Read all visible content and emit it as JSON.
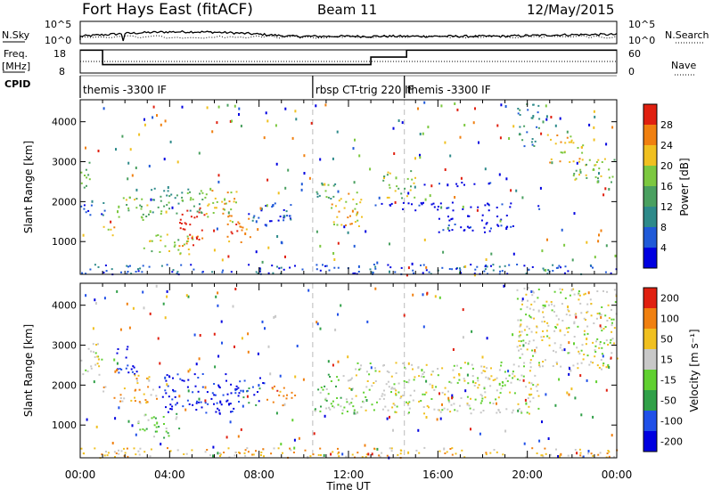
{
  "header": {
    "station": "Fort Hays East (fitACF)",
    "beam": "Beam 11",
    "date": "12/May/2015"
  },
  "top_panels": {
    "nsky_label": "N.Sky",
    "nsky_ticks": [
      "10^5",
      "10^0"
    ],
    "nsearch_label": "N.Search",
    "freq_label_1": "Freq.",
    "freq_label_2": "[MHz]",
    "freq_ticks": [
      "18",
      "8"
    ],
    "nave_ticks": [
      "60",
      "0"
    ],
    "nave_label": "Nave",
    "cpid_label": "CPID",
    "cpid_segments": [
      {
        "label": "themis -3300 IF",
        "start_h": 0.0
      },
      {
        "label": "rbsp CT-trig 220 IF",
        "start_h": 10.4
      },
      {
        "label": "themis -3300 IF",
        "start_h": 14.5
      }
    ]
  },
  "chart_data": [
    {
      "type": "heatmap",
      "title": "Power",
      "ylabel": "Slant Range [km]",
      "xlabel": "Time UT",
      "xlim": [
        0,
        24
      ],
      "ylim": [
        180,
        4550
      ],
      "x_ticks": [
        "00:00",
        "04:00",
        "08:00",
        "12:00",
        "16:00",
        "20:00",
        "00:00"
      ],
      "y_ticks": [
        1000,
        2000,
        3000,
        4000
      ],
      "colorbar": {
        "label": "Power [dB]",
        "ticks": [
          4,
          8,
          12,
          16,
          20,
          24,
          28
        ],
        "range": [
          0,
          32
        ],
        "colors": [
          "#0000e0",
          "#205ad8",
          "#2e8a8a",
          "#4aa060",
          "#7cc840",
          "#f0c020",
          "#f08010",
          "#e02010"
        ]
      },
      "regions": [
        {
          "t0": 0.0,
          "t1": 0.5,
          "r0": 2300,
          "r1": 3100,
          "level": 3
        },
        {
          "t0": 0.0,
          "t1": 1.1,
          "r0": 1600,
          "r1": 2000,
          "level": 1
        },
        {
          "t0": 1.0,
          "t1": 1.7,
          "r0": 1100,
          "r1": 1400,
          "level": 5
        },
        {
          "t0": 1.6,
          "t1": 3.0,
          "r0": 1550,
          "r1": 2200,
          "level": 4
        },
        {
          "t0": 2.8,
          "t1": 5.0,
          "r0": 700,
          "r1": 1200,
          "level": 4
        },
        {
          "t0": 3.0,
          "t1": 5.6,
          "r0": 1700,
          "r1": 2400,
          "level": 3
        },
        {
          "t0": 4.4,
          "t1": 5.6,
          "r0": 900,
          "r1": 1900,
          "level": 7
        },
        {
          "t0": 5.5,
          "t1": 7.0,
          "r0": 1500,
          "r1": 2300,
          "level": 5
        },
        {
          "t0": 6.5,
          "t1": 7.6,
          "r0": 1000,
          "r1": 1700,
          "level": 6
        },
        {
          "t0": 7.5,
          "t1": 9.5,
          "r0": 1400,
          "r1": 2000,
          "level": 1
        },
        {
          "t0": 10.5,
          "t1": 11.5,
          "r0": 1900,
          "r1": 2500,
          "level": 3
        },
        {
          "t0": 11.2,
          "t1": 12.6,
          "r0": 1400,
          "r1": 2300,
          "level": 5
        },
        {
          "t0": 13.5,
          "t1": 15.0,
          "r0": 2100,
          "r1": 2800,
          "level": 4
        },
        {
          "t0": 13.0,
          "t1": 20.5,
          "r0": 1800,
          "r1": 2000,
          "level": 0
        },
        {
          "t0": 15.0,
          "t1": 19.0,
          "r0": 2400,
          "r1": 2500,
          "level": 0
        },
        {
          "t0": 16.0,
          "t1": 19.5,
          "r0": 1250,
          "r1": 1700,
          "level": 0
        },
        {
          "t0": 19.5,
          "t1": 20.5,
          "r0": 3400,
          "r1": 4500,
          "level": 2
        },
        {
          "t0": 20.8,
          "t1": 22.5,
          "r0": 3000,
          "r1": 3700,
          "level": 5
        },
        {
          "t0": 22.0,
          "t1": 24.0,
          "r0": 2500,
          "r1": 3100,
          "level": 4
        },
        {
          "t0": 0.0,
          "t1": 24.0,
          "r0": 200,
          "r1": 450,
          "level": 1
        }
      ]
    },
    {
      "type": "heatmap",
      "title": "Velocity",
      "ylabel": "Slant Range [km]",
      "xlabel": "Time UT",
      "xlim": [
        0,
        24
      ],
      "ylim": [
        180,
        4550
      ],
      "x_ticks": [
        "00:00",
        "04:00",
        "08:00",
        "12:00",
        "16:00",
        "20:00",
        "00:00"
      ],
      "y_ticks": [
        1000,
        2000,
        3000,
        4000
      ],
      "colorbar": {
        "label": "Velocity [m s⁻¹]",
        "ticks": [
          200,
          100,
          50,
          15,
          -15,
          -50,
          -100,
          -200
        ],
        "colors": [
          "#0000e0",
          "#2050e8",
          "#30a048",
          "#60d030",
          "#c8c8c8",
          "#f0c020",
          "#f08010",
          "#e02010"
        ]
      },
      "regions": [
        {
          "t0": 0.0,
          "t1": 1.0,
          "r0": 2200,
          "r1": 3100,
          "level": 4
        },
        {
          "t0": 1.0,
          "t1": 2.0,
          "r0": 1600,
          "r1": 2000,
          "level": 5
        },
        {
          "t0": 1.6,
          "t1": 2.5,
          "r0": 2200,
          "r1": 3000,
          "level": 0
        },
        {
          "t0": 2.2,
          "t1": 3.5,
          "r0": 1500,
          "r1": 2300,
          "level": 5
        },
        {
          "t0": 2.5,
          "t1": 4.5,
          "r0": 700,
          "r1": 1300,
          "level": 3
        },
        {
          "t0": 3.5,
          "t1": 7.2,
          "r0": 1300,
          "r1": 2300,
          "level": 0
        },
        {
          "t0": 7.2,
          "t1": 8.2,
          "r0": 1500,
          "r1": 2200,
          "level": 1
        },
        {
          "t0": 8.3,
          "t1": 9.6,
          "r0": 1500,
          "r1": 2000,
          "level": 6
        },
        {
          "t0": 10.4,
          "t1": 12.0,
          "r0": 1300,
          "r1": 2300,
          "level": 3
        },
        {
          "t0": 12.0,
          "t1": 20.5,
          "r0": 1300,
          "r1": 2600,
          "level": 4
        },
        {
          "t0": 19.5,
          "t1": 24.0,
          "r0": 2400,
          "r1": 4500,
          "level": 4
        },
        {
          "t0": 0.0,
          "t1": 24.0,
          "r0": 200,
          "r1": 450,
          "level": 5
        }
      ]
    }
  ]
}
